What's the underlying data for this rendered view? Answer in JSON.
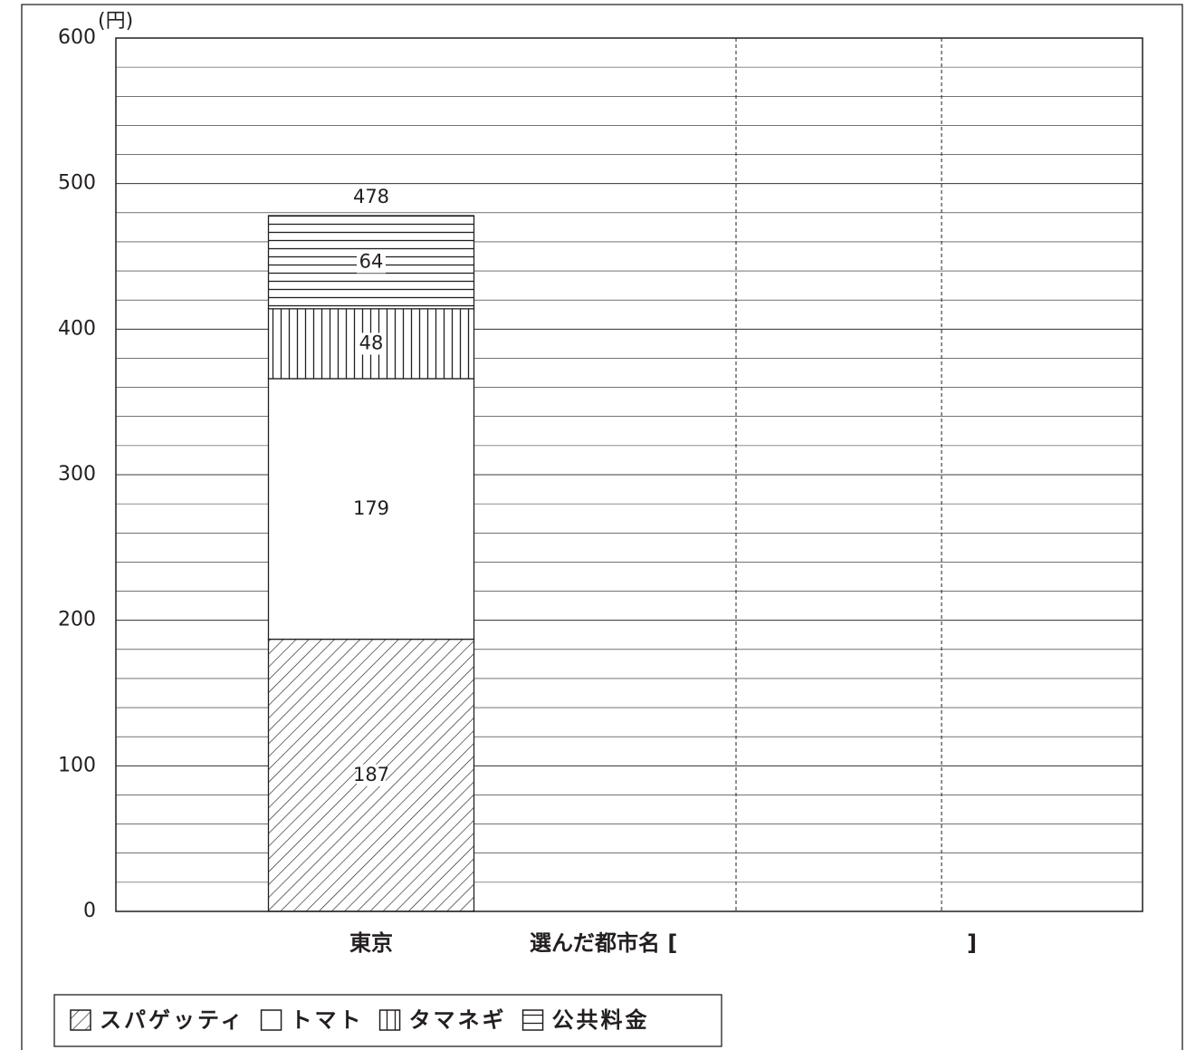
{
  "chart_data": {
    "type": "stacked-bar",
    "y_unit": "(円)",
    "categories": [
      "東京"
    ],
    "series": [
      {
        "name": "スパゲッティ",
        "color": "#231f20",
        "pattern": "diagonal",
        "values": [
          187
        ]
      },
      {
        "name": "トマト",
        "color": "#231f20",
        "pattern": "none",
        "values": [
          179
        ]
      },
      {
        "name": "タマネギ",
        "color": "#231f20",
        "pattern": "vertical",
        "values": [
          48
        ]
      },
      {
        "name": "公共料金",
        "color": "#231f20",
        "pattern": "horizontal",
        "values": [
          64
        ]
      }
    ],
    "totals": [
      478
    ],
    "annotations": [
      "選んだ都市名 [",
      "]"
    ],
    "ylim": [
      0,
      600
    ],
    "yticks": [
      0,
      100,
      200,
      300,
      400,
      500,
      600
    ],
    "grid": true,
    "minor_grid_step": 20,
    "legend": "bottom-left"
  }
}
